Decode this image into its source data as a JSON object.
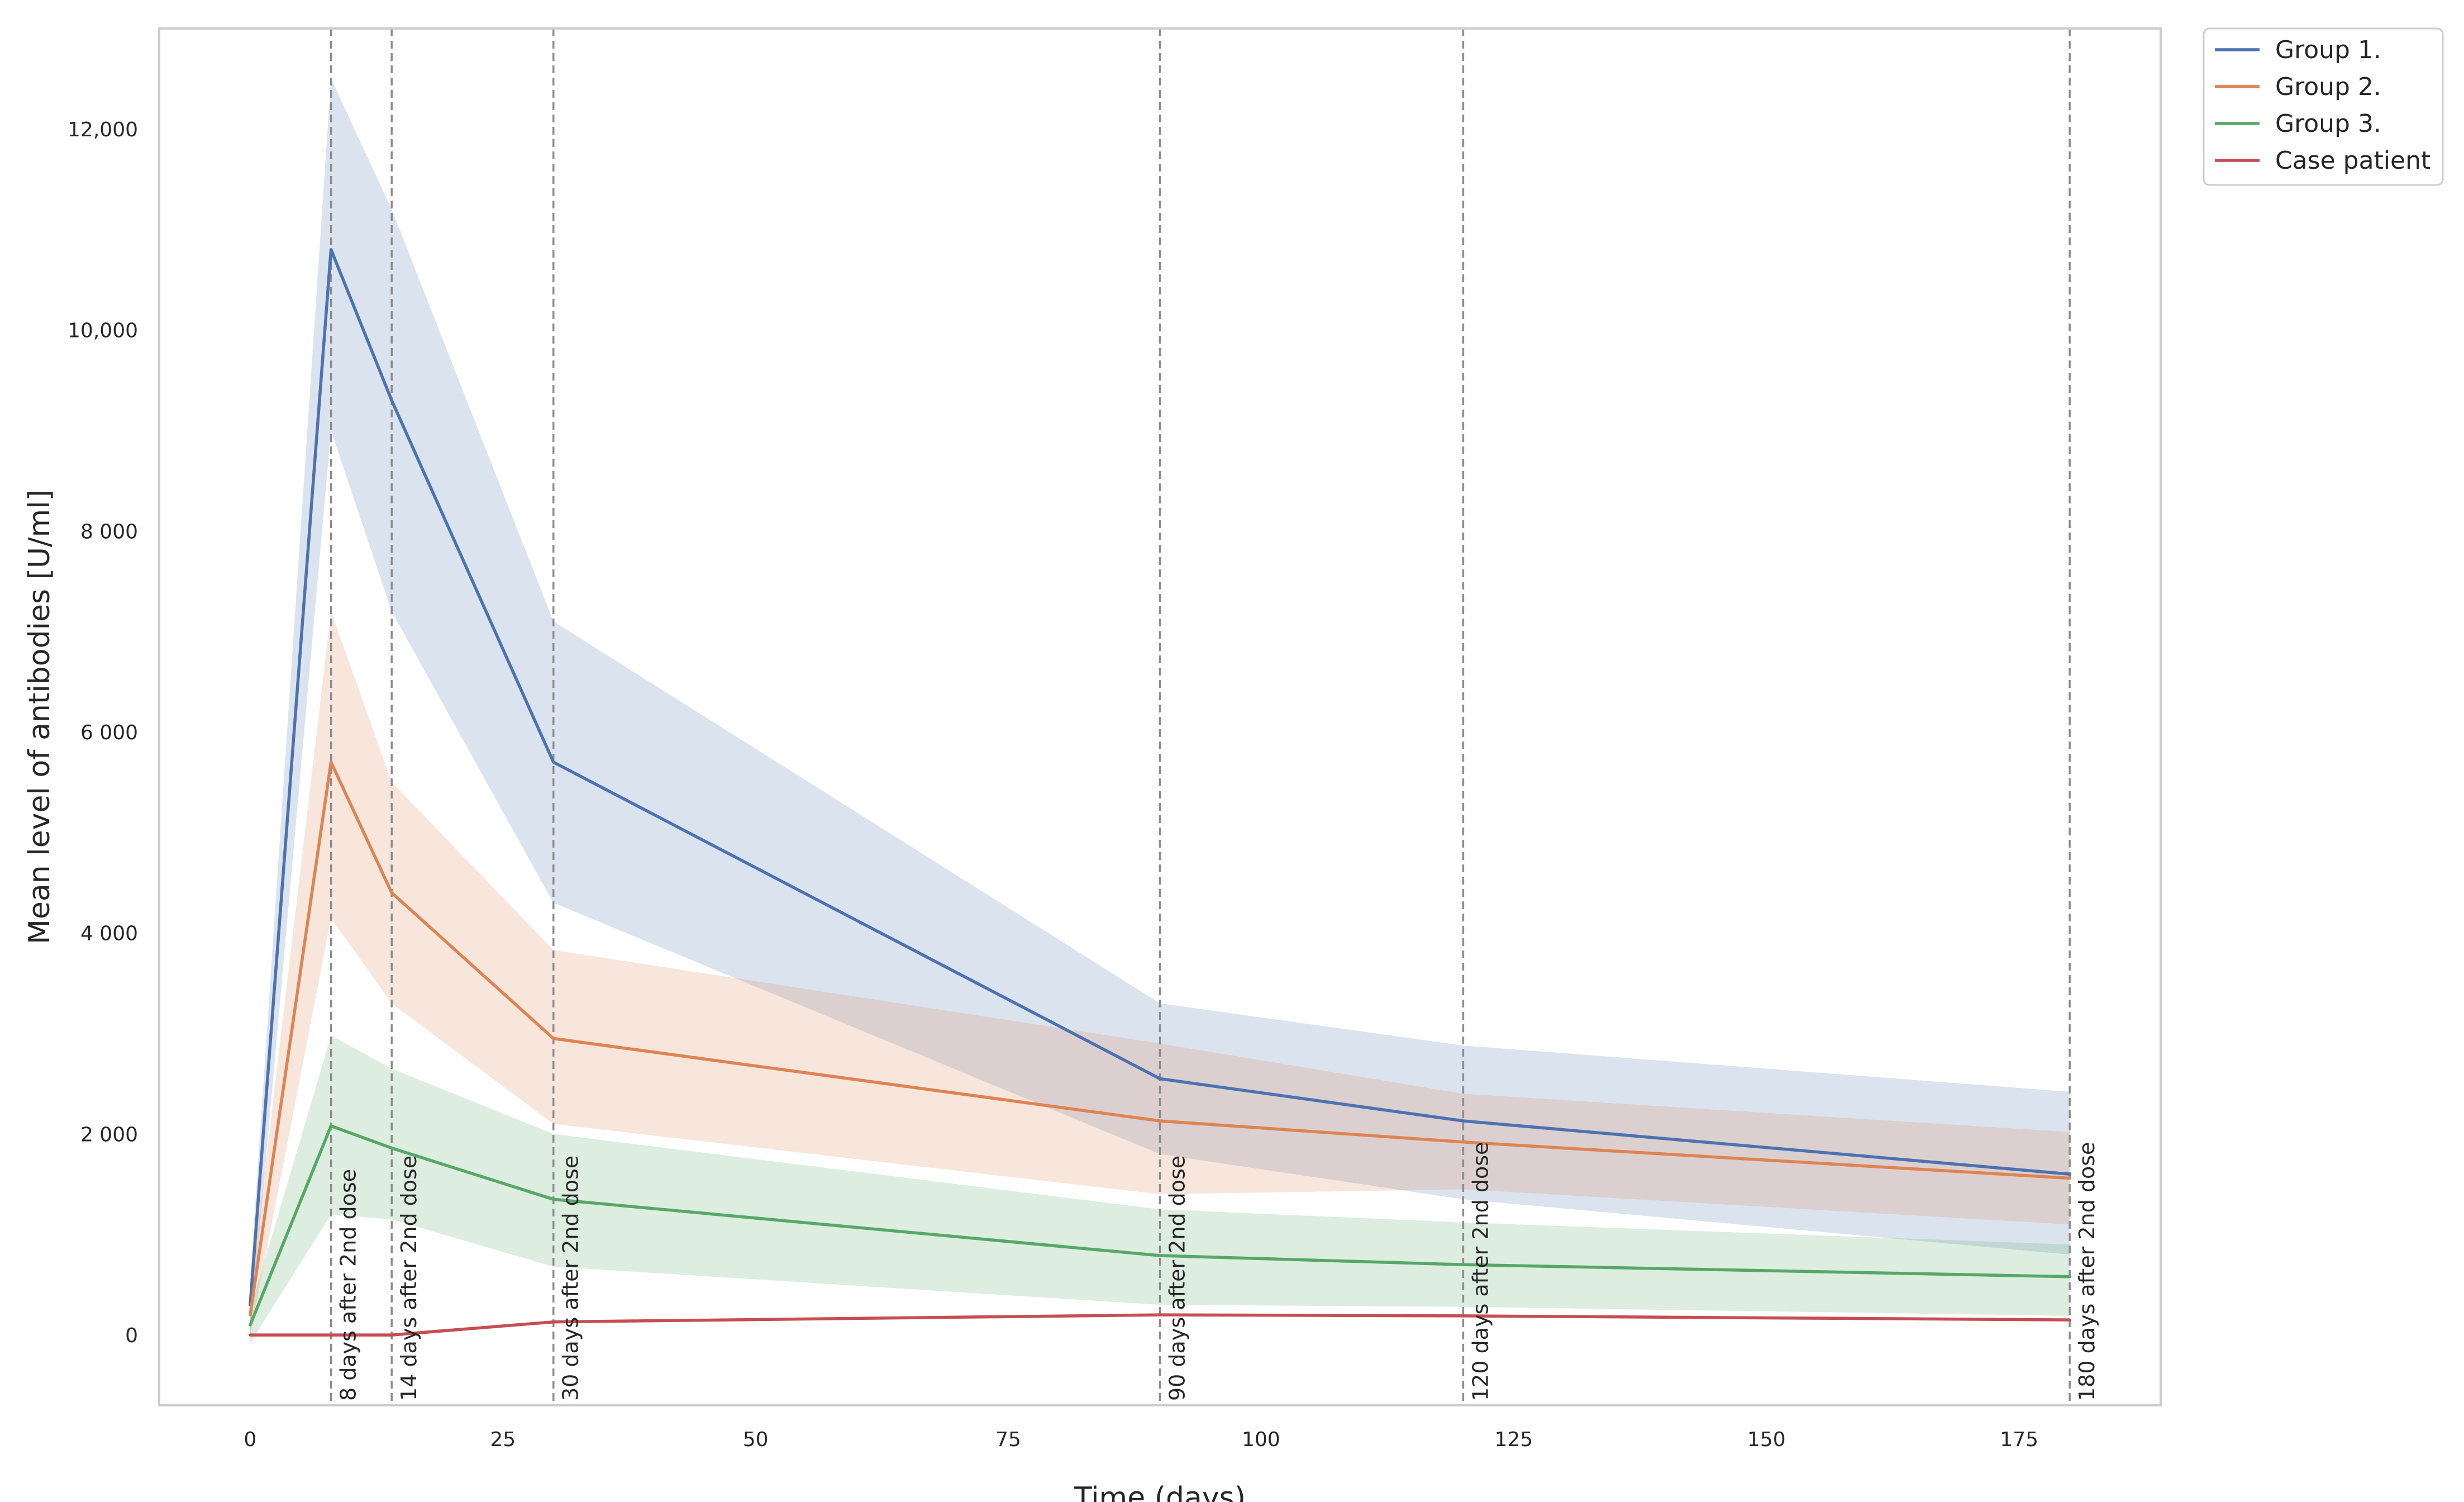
{
  "chart_data": {
    "type": "line",
    "title": "",
    "xlabel": "Time (days)",
    "ylabel": "Mean level of antibodies [U/ml]",
    "xlim": [
      -9,
      189
    ],
    "ylim": [
      -700,
      13000
    ],
    "grid": false,
    "legend_position": "outside-top-right",
    "x_ticks": [
      {
        "value": 0,
        "label": "0"
      },
      {
        "value": 25,
        "label": "25"
      },
      {
        "value": 50,
        "label": "50"
      },
      {
        "value": 75,
        "label": "75"
      },
      {
        "value": 100,
        "label": "100"
      },
      {
        "value": 125,
        "label": "125"
      },
      {
        "value": 150,
        "label": "150"
      },
      {
        "value": 175,
        "label": "175"
      }
    ],
    "y_ticks": [
      {
        "value": 0,
        "label": "0"
      },
      {
        "value": 2000,
        "label": "2 000"
      },
      {
        "value": 4000,
        "label": "4 000"
      },
      {
        "value": 6000,
        "label": "6 000"
      },
      {
        "value": 8000,
        "label": "8 000"
      },
      {
        "value": 10000,
        "label": "10,000"
      },
      {
        "value": 12000,
        "label": "12,000"
      }
    ],
    "x": [
      0,
      8,
      14,
      30,
      90,
      120,
      180
    ],
    "series": [
      {
        "name": "Group 1.",
        "color": "#4c72b0",
        "values": [
          300,
          10800,
          9300,
          5700,
          2550,
          2130,
          1600
        ],
        "lower": [
          0,
          9000,
          7200,
          4300,
          1800,
          1350,
          800
        ],
        "upper": [
          550,
          12500,
          11200,
          7100,
          3300,
          2880,
          2420
        ]
      },
      {
        "name": "Group 2.",
        "color": "#dd8452",
        "values": [
          200,
          5700,
          4400,
          2950,
          2130,
          1920,
          1560
        ],
        "lower": [
          0,
          4150,
          3300,
          2100,
          1400,
          1450,
          1100
        ],
        "upper": [
          400,
          7200,
          5500,
          3830,
          2900,
          2400,
          2020
        ]
      },
      {
        "name": "Group 3.",
        "color": "#55a868",
        "values": [
          100,
          2080,
          1860,
          1350,
          790,
          700,
          580
        ],
        "lower": [
          -80,
          1200,
          1150,
          680,
          300,
          280,
          190
        ],
        "upper": [
          250,
          2980,
          2650,
          2000,
          1250,
          1120,
          900
        ]
      },
      {
        "name": "Case patient",
        "color": "#c44e52",
        "values": [
          0,
          0,
          0,
          130,
          200,
          190,
          150
        ]
      }
    ],
    "vlines": [
      {
        "x": 8,
        "label": "8 days after 2nd dose"
      },
      {
        "x": 14,
        "label": "14 days after 2nd dose"
      },
      {
        "x": 30,
        "label": "30 days after 2nd dose"
      },
      {
        "x": 90,
        "label": "90 days after 2nd dose"
      },
      {
        "x": 120,
        "label": "120 days after 2nd dose"
      },
      {
        "x": 180,
        "label": "180 days after 2nd dose"
      }
    ]
  }
}
